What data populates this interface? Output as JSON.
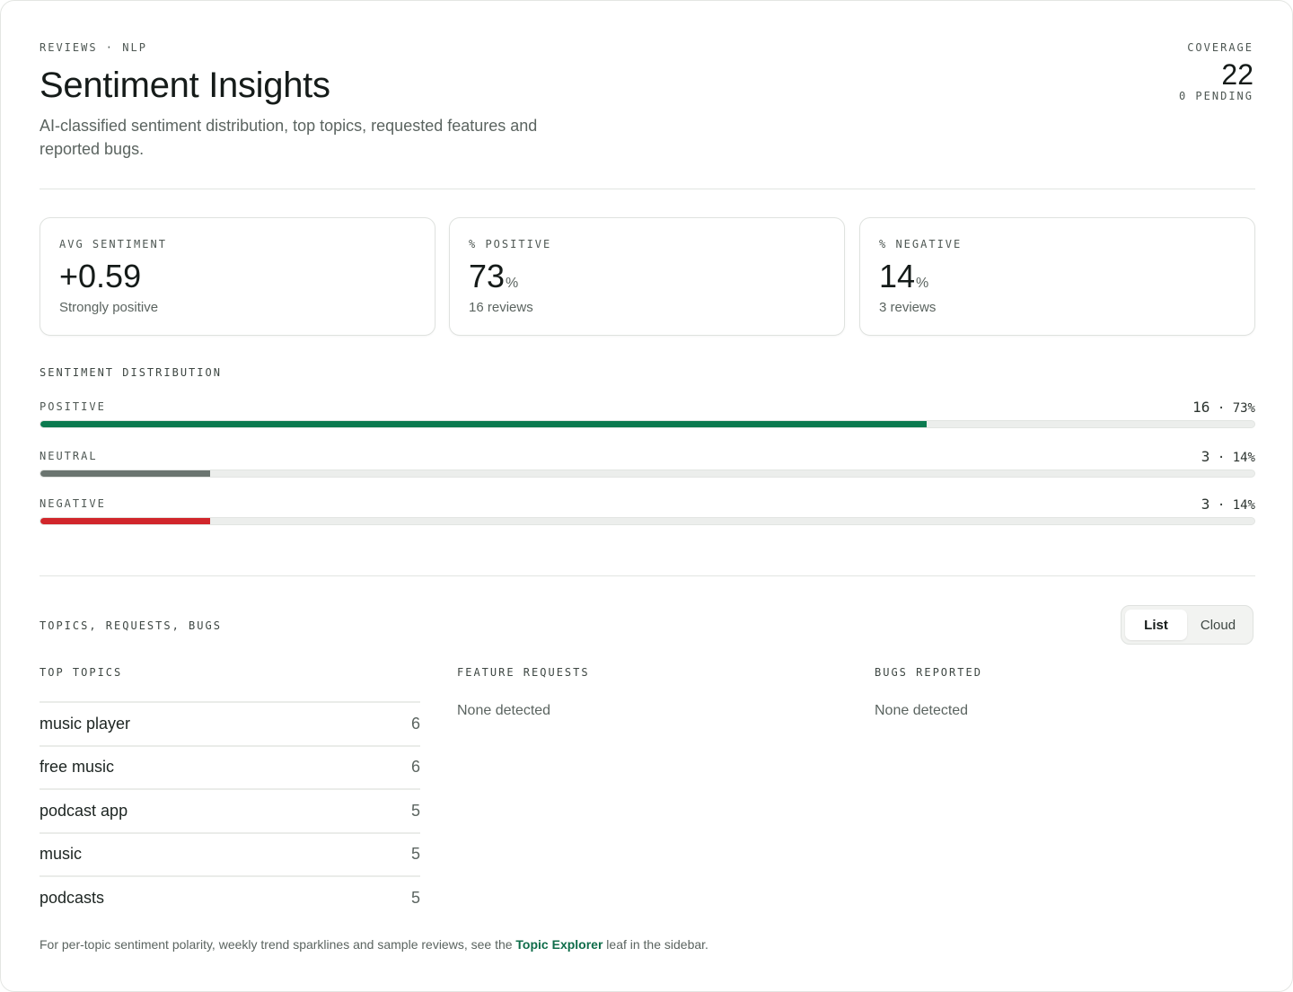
{
  "header": {
    "eyebrow": "REVIEWS · NLP",
    "title": "Sentiment Insights",
    "subtitle": "AI-classified sentiment distribution, top topics, requested features and reported bugs.",
    "coverage_label": "COVERAGE",
    "coverage_value": "22",
    "pending": "0 PENDING"
  },
  "stats": [
    {
      "label": "AVG SENTIMENT",
      "value": "+0.59",
      "unit": "",
      "sub": "Strongly positive"
    },
    {
      "label": "% POSITIVE",
      "value": "73",
      "unit": "%",
      "sub": "16 reviews"
    },
    {
      "label": "% NEGATIVE",
      "value": "14",
      "unit": "%",
      "sub": "3 reviews"
    }
  ],
  "distribution": {
    "title": "SENTIMENT DISTRIBUTION",
    "rows": [
      {
        "name": "POSITIVE",
        "count": "16",
        "pct": "73%",
        "fraction": 0.73,
        "color": "#0b7a4f"
      },
      {
        "name": "NEUTRAL",
        "count": "3",
        "pct": "14%",
        "fraction": 0.14,
        "color": "#6b7570"
      },
      {
        "name": "NEGATIVE",
        "count": "3",
        "pct": "14%",
        "fraction": 0.14,
        "color": "#d1262b"
      }
    ]
  },
  "topics_section": {
    "title": "TOPICS, REQUESTS, BUGS",
    "toggle": {
      "options": [
        "List",
        "Cloud"
      ],
      "selected": "List"
    },
    "top_topics": {
      "title": "TOP TOPICS",
      "items": [
        {
          "label": "music player",
          "count": "6"
        },
        {
          "label": "free music",
          "count": "6"
        },
        {
          "label": "podcast app",
          "count": "5"
        },
        {
          "label": "music",
          "count": "5"
        },
        {
          "label": "podcasts",
          "count": "5"
        }
      ]
    },
    "feature_requests": {
      "title": "FEATURE REQUESTS",
      "empty": "None detected"
    },
    "bugs_reported": {
      "title": "BUGS REPORTED",
      "empty": "None detected"
    }
  },
  "footnote": {
    "before": "For per-topic sentiment polarity, weekly trend sparklines and sample reviews, see the ",
    "link": "Topic Explorer",
    "after": " leaf in the sidebar."
  },
  "colors": {
    "accent": "#0f6d4a",
    "positive": "#0b7a4f",
    "neutral": "#6b7570",
    "negative": "#d1262b"
  }
}
